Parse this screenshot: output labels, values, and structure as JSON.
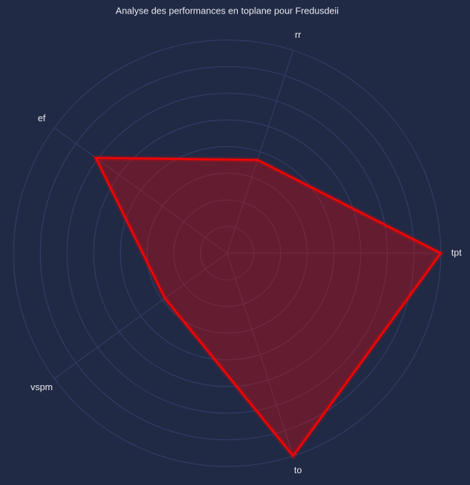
{
  "chart_data": {
    "type": "radar",
    "title": "Analyse des performances en toplane pour Fredusdeii",
    "categories": [
      "tpt",
      "rr",
      "ef",
      "vspm",
      "to"
    ],
    "series": [
      {
        "color": "#ff0000",
        "values": [
          1.0,
          0.46,
          0.76,
          0.36,
          1.0
        ]
      }
    ],
    "rlim": [
      0,
      1
    ],
    "rticks": [
      0.125,
      0.25,
      0.375,
      0.5,
      0.625,
      0.75,
      0.875,
      1.0
    ],
    "grid": true
  }
}
